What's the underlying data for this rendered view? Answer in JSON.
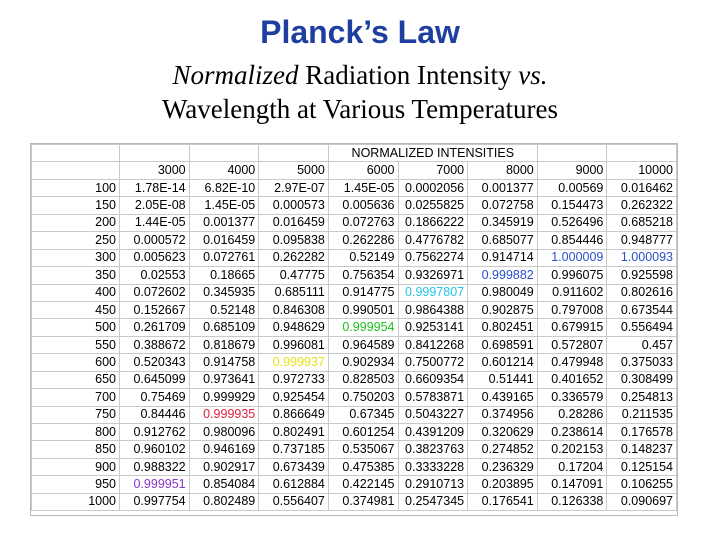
{
  "title": "Planck’s Law",
  "subtitle": {
    "italic": "Normalized",
    "line1_rest": " Radiation Intensity ",
    "vs": "vs.",
    "line2": "Wavelength at Various Temperatures"
  },
  "table": {
    "header_title": "NORMALIZED INTENSITIES",
    "temperatures": [
      "3000",
      "4000",
      "5000",
      "6000",
      "7000",
      "8000",
      "9000",
      "10000"
    ],
    "rows": [
      {
        "wl": "100",
        "values": [
          "1.78E-14",
          "6.82E-10",
          "2.97E-07",
          "1.45E-05",
          "0.0002056",
          "0.001377",
          "0.00569",
          "0.016462"
        ]
      },
      {
        "wl": "150",
        "values": [
          "2.05E-08",
          "1.45E-05",
          "0.000573",
          "0.005636",
          "0.0255825",
          "0.072758",
          "0.154473",
          "0.262322"
        ]
      },
      {
        "wl": "200",
        "values": [
          "1.44E-05",
          "0.001377",
          "0.016459",
          "0.072763",
          "0.1866222",
          "0.345919",
          "0.526496",
          "0.685218"
        ]
      },
      {
        "wl": "250",
        "values": [
          "0.000572",
          "0.016459",
          "0.095838",
          "0.262286",
          "0.4776782",
          "0.685077",
          "0.854446",
          "0.948777"
        ]
      },
      {
        "wl": "300",
        "values": [
          "0.005623",
          "0.072761",
          "0.262282",
          "0.52149",
          "0.7562274",
          "0.914714",
          "1.000009",
          "1.000093"
        ]
      },
      {
        "wl": "350",
        "values": [
          "0.02553",
          "0.18665",
          "0.47775",
          "0.756354",
          "0.9326971",
          "0.999882",
          "0.996075",
          "0.925598"
        ]
      },
      {
        "wl": "400",
        "values": [
          "0.072602",
          "0.345935",
          "0.685111",
          "0.914775",
          "0.9997807",
          "0.980049",
          "0.911602",
          "0.802616"
        ]
      },
      {
        "wl": "450",
        "values": [
          "0.152667",
          "0.52148",
          "0.846308",
          "0.990501",
          "0.9864388",
          "0.902875",
          "0.797008",
          "0.673544"
        ]
      },
      {
        "wl": "500",
        "values": [
          "0.261709",
          "0.685109",
          "0.948629",
          "0.999954",
          "0.9253141",
          "0.802451",
          "0.679915",
          "0.556494"
        ]
      },
      {
        "wl": "550",
        "values": [
          "0.388672",
          "0.818679",
          "0.996081",
          "0.964589",
          "0.8412268",
          "0.698591",
          "0.572807",
          "0.457"
        ]
      },
      {
        "wl": "600",
        "values": [
          "0.520343",
          "0.914758",
          "0.999937",
          "0.902934",
          "0.7500772",
          "0.601214",
          "0.479948",
          "0.375033"
        ]
      },
      {
        "wl": "650",
        "values": [
          "0.645099",
          "0.973641",
          "0.972733",
          "0.828503",
          "0.6609354",
          "0.51441",
          "0.401652",
          "0.308499"
        ]
      },
      {
        "wl": "700",
        "values": [
          "0.75469",
          "0.999929",
          "0.925454",
          "0.750203",
          "0.5783871",
          "0.439165",
          "0.336579",
          "0.254813"
        ]
      },
      {
        "wl": "750",
        "values": [
          "0.84446",
          "0.999935",
          "0.866649",
          "0.67345",
          "0.5043227",
          "0.374956",
          "0.28286",
          "0.211535"
        ]
      },
      {
        "wl": "800",
        "values": [
          "0.912762",
          "0.980096",
          "0.802491",
          "0.601254",
          "0.4391209",
          "0.320629",
          "0.238614",
          "0.176578"
        ]
      },
      {
        "wl": "850",
        "values": [
          "0.960102",
          "0.946169",
          "0.737185",
          "0.535067",
          "0.3823763",
          "0.274852",
          "0.202153",
          "0.148237"
        ]
      },
      {
        "wl": "900",
        "values": [
          "0.988322",
          "0.902917",
          "0.673439",
          "0.475385",
          "0.3333228",
          "0.236329",
          "0.17204",
          "0.125154"
        ]
      },
      {
        "wl": "950",
        "values": [
          "0.999951",
          "0.854084",
          "0.612884",
          "0.422145",
          "0.2910713",
          "0.203895",
          "0.147091",
          "0.106255"
        ]
      },
      {
        "wl": "1000",
        "values": [
          "0.997754",
          "0.802489",
          "0.556407",
          "0.374981",
          "0.2547345",
          "0.176541",
          "0.126338",
          "0.090697"
        ]
      }
    ],
    "highlights": [
      {
        "row": 4,
        "col": 6,
        "color": "#2a4fc8"
      },
      {
        "row": 4,
        "col": 7,
        "color": "#2a4fc8"
      },
      {
        "row": 5,
        "col": 5,
        "color": "#2a4fc8"
      },
      {
        "row": 6,
        "col": 4,
        "color": "#22c6e6"
      },
      {
        "row": 8,
        "col": 3,
        "color": "#1fbf1f"
      },
      {
        "row": 10,
        "col": 2,
        "color": "#e8e01a"
      },
      {
        "row": 13,
        "col": 1,
        "color": "#e0203a"
      },
      {
        "row": 17,
        "col": 0,
        "color": "#8a34c8"
      }
    ]
  }
}
